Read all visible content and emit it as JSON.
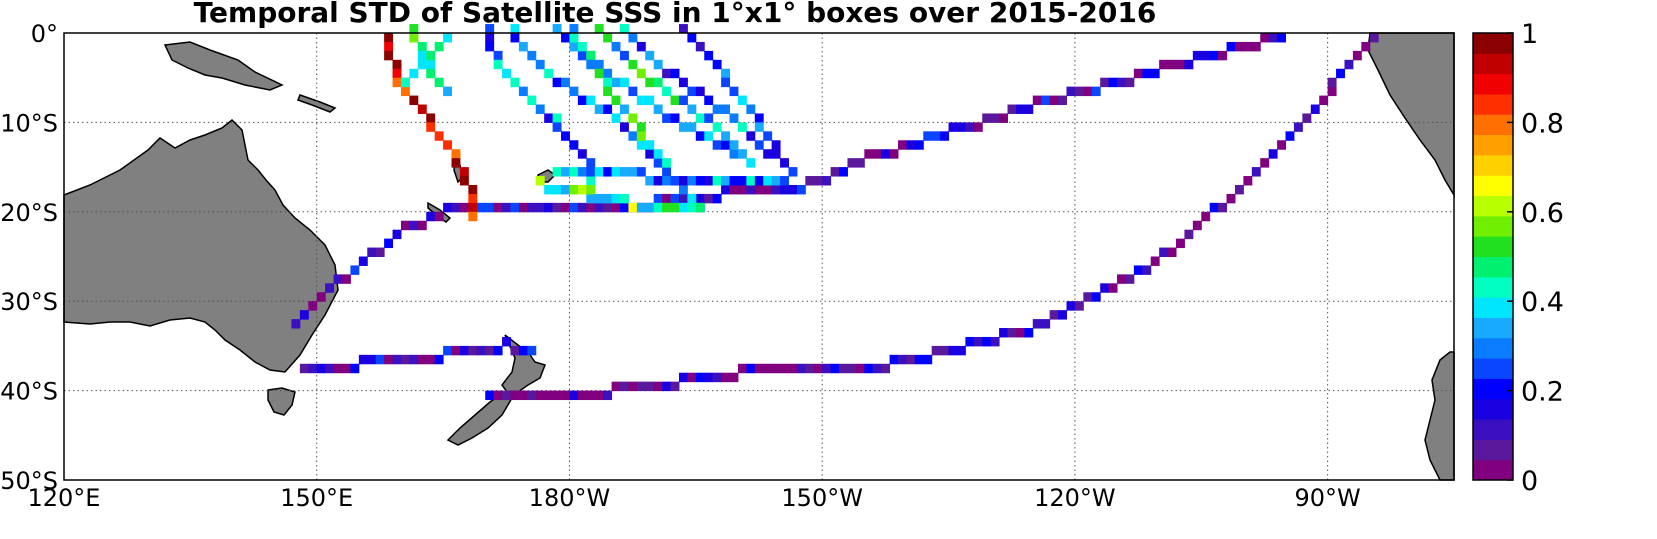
{
  "title": "Temporal STD of Satellite SSS in 1°x1° boxes over 2015-2016",
  "lat_labels": [
    {
      "lat": 0,
      "text": "0°"
    },
    {
      "lat": -10,
      "text": "10°S"
    },
    {
      "lat": -20,
      "text": "20°S"
    },
    {
      "lat": -30,
      "text": "30°S"
    },
    {
      "lat": -40,
      "text": "40°S"
    },
    {
      "lat": -50,
      "text": "50°S"
    }
  ],
  "lon_labels": [
    {
      "lon": 120,
      "text": "120°E"
    },
    {
      "lon": 150,
      "text": "150°E"
    },
    {
      "lon": 180,
      "text": "180°W"
    },
    {
      "lon": 210,
      "text": "150°W"
    },
    {
      "lon": 240,
      "text": "120°W"
    },
    {
      "lon": 270,
      "text": "90°W"
    }
  ],
  "colorbar": {
    "ticks": [
      "0",
      "0.2",
      "0.4",
      "0.6",
      "0.8",
      "1"
    ],
    "range": [
      0,
      1
    ],
    "colors": [
      "#800080",
      "#5a189c",
      "#3a10c0",
      "#1a00e0",
      "#0000ff",
      "#0a46ff",
      "#0a7cff",
      "#18aaff",
      "#00e6ff",
      "#00ffc0",
      "#00f070",
      "#20e020",
      "#70f000",
      "#b8ff00",
      "#ffff00",
      "#ffd000",
      "#ffa000",
      "#ff7000",
      "#ff3000",
      "#f00000",
      "#c00000",
      "#8b0000"
    ]
  },
  "map": {
    "lon_range": [
      120,
      285
    ],
    "lat_range": [
      -50,
      0
    ],
    "land_color": "#808080",
    "grid": "dotted"
  },
  "chart_data": {
    "type": "heatmap",
    "title": "Temporal STD of Satellite SSS in 1°x1° boxes over 2015-2016",
    "value_range": [
      0,
      1
    ],
    "tracks": [
      {
        "points": [
          [
            147,
            -33
          ],
          [
            152,
            -28
          ],
          [
            160,
            -22
          ],
          [
            165,
            -20
          ],
          [
            178,
            -20
          ],
          [
            190,
            -19
          ],
          [
            198,
            -18
          ],
          [
            208,
            -17
          ]
        ],
        "value": 0.12
      },
      {
        "points": [
          [
            208,
            -17
          ],
          [
            215,
            -14
          ],
          [
            225,
            -11
          ],
          [
            235,
            -8
          ],
          [
            250,
            -4
          ],
          [
            262,
            -1
          ],
          [
            265,
            0
          ]
        ],
        "value": 0.1
      },
      {
        "points": [
          [
            170,
            -41
          ],
          [
            185,
            -40
          ],
          [
            200,
            -38
          ],
          [
            218,
            -37
          ],
          [
            235,
            -33
          ],
          [
            250,
            -25
          ],
          [
            262,
            -15
          ],
          [
            270,
            -7
          ],
          [
            276,
            0
          ]
        ],
        "value": 0.08
      },
      {
        "points": [
          [
            148,
            -38
          ],
          [
            155,
            -37
          ],
          [
            165,
            -36
          ],
          [
            172,
            -35
          ],
          [
            176,
            -36
          ]
        ],
        "value": 0.15
      },
      {
        "points": [
          [
            158,
            -0.5
          ],
          [
            160,
            -6
          ],
          [
            163,
            -10
          ],
          [
            166,
            -14
          ],
          [
            168,
            -18
          ],
          [
            169,
            -22
          ]
        ],
        "value": 0.9
      },
      {
        "points": [
          [
            161,
            0
          ],
          [
            163,
            -4
          ],
          [
            166,
            -8
          ]
        ],
        "value": 0.45
      },
      {
        "points": [
          [
            165,
            -1
          ],
          [
            162,
            -4
          ],
          [
            160,
            -7
          ]
        ],
        "value": 0.4
      },
      {
        "points": [
          [
            170,
            0
          ],
          [
            172,
            -5
          ],
          [
            178,
            -10
          ],
          [
            182,
            -15
          ],
          [
            183,
            -20
          ]
        ],
        "value": 0.3
      },
      {
        "points": [
          [
            178,
            0
          ],
          [
            186,
            -6
          ],
          [
            192,
            -10
          ],
          [
            198,
            -13
          ],
          [
            202,
            -15
          ]
        ],
        "value": 0.35
      },
      {
        "points": [
          [
            183,
            0
          ],
          [
            190,
            -6
          ],
          [
            196,
            -10
          ],
          [
            200,
            -13
          ]
        ],
        "value": 0.4
      },
      {
        "points": [
          [
            186,
            0
          ],
          [
            192,
            -5
          ],
          [
            198,
            -9
          ],
          [
            204,
            -14
          ],
          [
            207,
            -16
          ]
        ],
        "value": 0.28
      },
      {
        "points": [
          [
            193,
            0
          ],
          [
            198,
            -5
          ],
          [
            202,
            -10
          ],
          [
            205,
            -14
          ]
        ],
        "value": 0.25
      },
      {
        "points": [
          [
            173,
            0
          ],
          [
            176,
            -4
          ],
          [
            184,
            -9
          ],
          [
            190,
            -15
          ],
          [
            196,
            -20
          ]
        ],
        "value": 0.3
      },
      {
        "points": [
          [
            180,
            0
          ],
          [
            184,
            -6
          ],
          [
            188,
            -11
          ],
          [
            192,
            -16
          ]
        ],
        "value": 0.45
      },
      {
        "points": [
          [
            178,
            -16
          ],
          [
            188,
            -16
          ],
          [
            198,
            -17
          ],
          [
            206,
            -16
          ]
        ],
        "value": 0.3
      },
      {
        "points": [
          [
            176,
            -17
          ],
          [
            182,
            -18
          ],
          [
            190,
            -20
          ],
          [
            196,
            -19
          ]
        ],
        "value": 0.5
      }
    ]
  }
}
